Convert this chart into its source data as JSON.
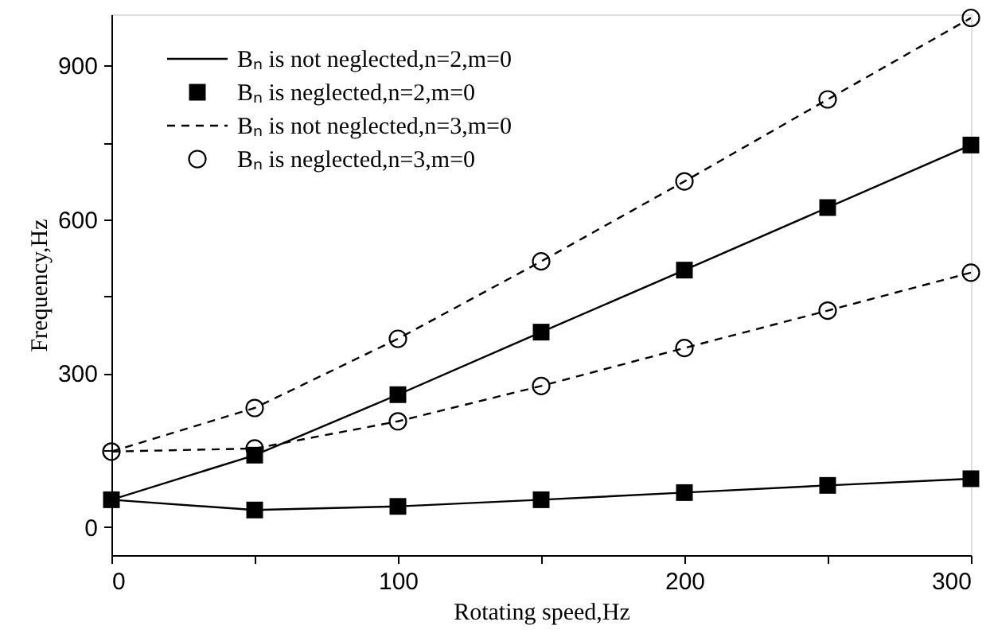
{
  "chart_data": {
    "type": "line",
    "xlabel": "Rotating speed,Hz",
    "ylabel": "Frequency,Hz",
    "xlim": [
      0,
      300
    ],
    "ylim": [
      -55,
      1000
    ],
    "xticks": [
      0,
      {
        "value": 50,
        "label": null
      },
      100,
      {
        "value": 150,
        "label": null
      },
      200,
      {
        "value": 250,
        "label": null
      },
      300
    ],
    "yticks": [
      0,
      {
        "value": 150,
        "label": null
      },
      300,
      {
        "value": 450,
        "label": null
      },
      600,
      {
        "value": 750,
        "label": null
      },
      900
    ],
    "grid": false,
    "legend": "top left",
    "series": [
      {
        "name": "Bₙ is not neglected,n=2,m=0",
        "line_style": "solid",
        "marker": "none",
        "color": "#000000",
        "x": [
          0,
          50,
          100,
          150,
          200,
          250,
          300
        ],
        "values": [
          53,
          140,
          258,
          380,
          501,
          623,
          745
        ]
      },
      {
        "line_style": "solid",
        "marker": "none",
        "color": "#000000",
        "x": [
          0,
          50,
          100,
          150,
          200,
          250,
          300
        ],
        "values": [
          53,
          33,
          40,
          53,
          67,
          81,
          94
        ]
      },
      {
        "name": "Bₙ is neglected,n=2,m=0",
        "type": "scatter",
        "marker": "square",
        "color": "#000000",
        "x": [
          0,
          50,
          100,
          150,
          200,
          250,
          300,
          50,
          100,
          150,
          200,
          250,
          300
        ],
        "values": [
          53,
          140,
          258,
          380,
          501,
          623,
          745,
          33,
          40,
          53,
          67,
          81,
          94
        ]
      },
      {
        "name": "Bₙ is not neglected,n=3,m=0",
        "line_style": "dashed",
        "marker": "none",
        "color": "#000000",
        "x": [
          0,
          50,
          100,
          150,
          200,
          250,
          300
        ],
        "values": [
          147,
          232,
          367,
          518,
          674,
          834,
          993
        ]
      },
      {
        "line_style": "dashed",
        "marker": "none",
        "color": "#000000",
        "x": [
          0,
          50,
          100,
          150,
          200,
          250,
          300
        ],
        "values": [
          147,
          153,
          206,
          275,
          349,
          422,
          496
        ]
      },
      {
        "name": "Bₙ is neglected,n=3,m=0",
        "type": "scatter",
        "marker": "circle",
        "color": "#000000",
        "x": [
          0,
          50,
          100,
          150,
          200,
          250,
          300,
          50,
          100,
          150,
          200,
          250,
          300
        ],
        "values": [
          147,
          232,
          367,
          518,
          674,
          834,
          993,
          153,
          206,
          275,
          349,
          422,
          496
        ]
      }
    ]
  }
}
